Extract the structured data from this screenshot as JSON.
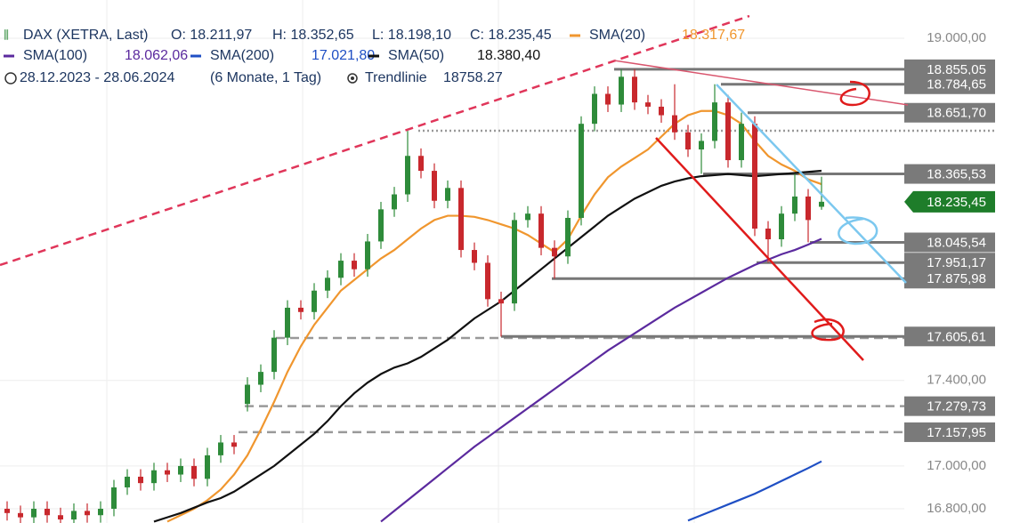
{
  "chart_data": {
    "type": "candlestick",
    "instrument": "DAX (XETRA, Last)",
    "ohlc_labels": [
      "O: 18.211,97",
      "H: 18.352,65",
      "L: 18.198,10",
      "C: 18.235,45"
    ],
    "date_range": "28.12.2023 - 28.06.2024",
    "period": "(6 Monate, 1 Tag)",
    "trendline": {
      "name": "Trendlinie",
      "value_label": "18758.27"
    },
    "ylim": [
      16733.5,
      19178.8
    ],
    "yticks": [
      {
        "value": 16800,
        "label": "16.800,00"
      },
      {
        "value": 17000,
        "label": "17.000,00"
      },
      {
        "value": 17400,
        "label": "17.400,00"
      },
      {
        "value": 19000,
        "label": "19.000,00"
      }
    ],
    "grid": true,
    "up_color": "#2e8b3a",
    "down_color": "#c8282d",
    "candles": {
      "open": [
        16800,
        16780,
        16760,
        16800,
        16770,
        16750,
        16790,
        16770,
        16800,
        16900,
        16950,
        16920,
        16980,
        16960,
        17000,
        16940,
        17050,
        17110,
        17290,
        17380,
        17440,
        17600,
        17740,
        17720,
        17820,
        17880,
        17960,
        17920,
        18050,
        18200,
        18270,
        18450,
        18380,
        18240,
        18300,
        18010,
        17950,
        17780,
        17760,
        18150,
        18180,
        18020,
        17980,
        18160,
        18600,
        18740,
        18690,
        18820,
        18700,
        18680,
        18640,
        18560,
        18480,
        18520,
        18700,
        18430,
        18600,
        18110,
        18060,
        18180,
        18260,
        18211.97
      ],
      "high": [
        16835,
        16815,
        16835,
        16835,
        16805,
        16825,
        16825,
        16835,
        16935,
        16985,
        16985,
        17015,
        17015,
        17035,
        17035,
        17085,
        17145,
        17145,
        17415,
        17475,
        17635,
        17775,
        17775,
        17855,
        17915,
        17995,
        17995,
        18085,
        18235,
        18305,
        18567,
        18485,
        18415,
        18335,
        18335,
        18045,
        17985,
        17815,
        18185,
        18215,
        18215,
        18055,
        18195,
        18635,
        18775,
        18775,
        18855,
        18855,
        18735,
        18715,
        18785,
        18595,
        18555,
        18785,
        18735,
        18652,
        18635,
        18145,
        18215,
        18366,
        18295,
        18352.65
      ],
      "low": [
        16745,
        16725,
        16725,
        16735,
        16715,
        16715,
        16735,
        16735,
        16765,
        16865,
        16885,
        16885,
        16925,
        16925,
        16905,
        16905,
        17015,
        17055,
        17255,
        17345,
        17405,
        17565,
        17685,
        17685,
        17785,
        17845,
        17885,
        17885,
        18015,
        18165,
        18235,
        18345,
        18205,
        18205,
        17975,
        17915,
        17745,
        17605,
        17725,
        18115,
        17985,
        17876,
        17945,
        18125,
        18565,
        18655,
        18655,
        18665,
        18645,
        18605,
        18525,
        18445,
        18366,
        18485,
        18395,
        18395,
        18075,
        17951,
        18025,
        18145,
        18046,
        18198.1
      ],
      "close": [
        16780,
        16760,
        16800,
        16770,
        16750,
        16790,
        16770,
        16800,
        16900,
        16950,
        16920,
        16980,
        16960,
        17000,
        16940,
        17050,
        17110,
        17090,
        17380,
        17440,
        17600,
        17740,
        17720,
        17820,
        17880,
        17960,
        17920,
        18050,
        18200,
        18270,
        18450,
        18380,
        18240,
        18300,
        18010,
        17950,
        17780,
        17760,
        18150,
        18180,
        18020,
        17980,
        18160,
        18600,
        18740,
        18690,
        18820,
        18700,
        18680,
        18640,
        18560,
        18480,
        18520,
        18700,
        18430,
        18600,
        18110,
        18060,
        18180,
        18260,
        18150,
        18235.45
      ]
    },
    "series": [
      {
        "name": "SMA(20)",
        "color": "#f0962e",
        "last_label": "18.317,67",
        "values": [
          null,
          null,
          null,
          null,
          null,
          null,
          null,
          null,
          null,
          null,
          null,
          null,
          16740,
          16770,
          16800,
          16840,
          16890,
          16960,
          17050,
          17170,
          17300,
          17440,
          17560,
          17660,
          17740,
          17820,
          17870,
          17920,
          17970,
          18010,
          18060,
          18110,
          18150,
          18170,
          18170,
          18165,
          18150,
          18130,
          18110,
          18080,
          18040,
          18000,
          18060,
          18170,
          18270,
          18350,
          18400,
          18440,
          18480,
          18540,
          18600,
          18640,
          18660,
          18660,
          18640,
          18600,
          18520,
          18450,
          18410,
          18380,
          18340,
          18317.67
        ]
      },
      {
        "name": "SMA(100)",
        "color": "#5b2a9e",
        "last_label": "18.062,06",
        "values": [
          null,
          null,
          null,
          null,
          null,
          null,
          null,
          null,
          null,
          null,
          null,
          null,
          null,
          null,
          null,
          null,
          null,
          null,
          null,
          null,
          null,
          null,
          null,
          null,
          null,
          null,
          null,
          null,
          16740,
          16790,
          16840,
          16890,
          16940,
          16990,
          17040,
          17090,
          17135,
          17180,
          17225,
          17270,
          17315,
          17360,
          17405,
          17450,
          17495,
          17540,
          17580,
          17620,
          17660,
          17700,
          17740,
          17775,
          17810,
          17845,
          17880,
          17910,
          17940,
          17965,
          17990,
          18010,
          18035,
          18062.06
        ]
      },
      {
        "name": "SMA(200)",
        "color": "#1f4fc4",
        "last_label": "17.021,80",
        "values": [
          null,
          null,
          null,
          null,
          null,
          null,
          null,
          null,
          null,
          null,
          null,
          null,
          null,
          null,
          null,
          null,
          null,
          null,
          null,
          null,
          null,
          null,
          null,
          null,
          null,
          null,
          null,
          null,
          null,
          null,
          null,
          null,
          null,
          null,
          null,
          null,
          null,
          null,
          null,
          null,
          null,
          null,
          null,
          null,
          null,
          null,
          null,
          null,
          null,
          null,
          null,
          16745,
          16770,
          16795,
          16820,
          16845,
          16870,
          16900,
          16930,
          16960,
          16990,
          17021.8
        ]
      },
      {
        "name": "SMA(50)",
        "color": "#111111",
        "last_label": "18.380,40",
        "values": [
          null,
          null,
          null,
          null,
          null,
          null,
          null,
          null,
          null,
          null,
          null,
          16740,
          16760,
          16780,
          16805,
          16830,
          16850,
          16880,
          16920,
          16960,
          17000,
          17050,
          17100,
          17150,
          17210,
          17280,
          17340,
          17390,
          17430,
          17460,
          17480,
          17510,
          17550,
          17590,
          17640,
          17690,
          17730,
          17770,
          17820,
          17870,
          17920,
          17970,
          18020,
          18070,
          18120,
          18170,
          18210,
          18250,
          18280,
          18310,
          18330,
          18345,
          18355,
          18360,
          18365,
          18360,
          18355,
          18360,
          18365,
          18370,
          18375,
          18380.4
        ]
      }
    ],
    "levels": [
      {
        "value": 18855.05,
        "label": "18.855,05"
      },
      {
        "value": 18784.65,
        "label": "18.784,65"
      },
      {
        "value": 18651.7,
        "label": "18.651,70"
      },
      {
        "value": 18365.53,
        "label": "18.365,53"
      },
      {
        "value": 18045.54,
        "label": "18.045,54"
      },
      {
        "value": 17951.17,
        "label": "17.951,17"
      },
      {
        "value": 17875.98,
        "label": "17.875,98"
      },
      {
        "value": 17605.61,
        "label": "17.605,61"
      },
      {
        "value": 17279.73,
        "label": "17.279,73"
      },
      {
        "value": 17157.95,
        "label": "17.157,95"
      }
    ],
    "last_price": {
      "value": 18235.45,
      "label": "18.235,45",
      "color": "#1e7d2a"
    }
  }
}
